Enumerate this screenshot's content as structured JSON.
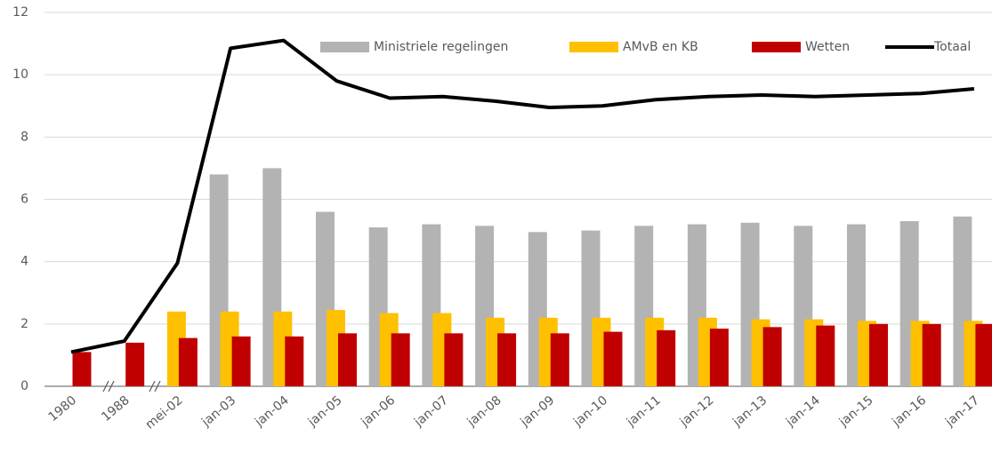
{
  "chart_data": {
    "type": "bar-line",
    "categories": [
      "1980",
      "1988",
      "mei-02",
      "jan-03",
      "jan-04",
      "jan-05",
      "jan-06",
      "jan-07",
      "jan-08",
      "jan-09",
      "jan-10",
      "jan-11",
      "jan-12",
      "jan-13",
      "jan-14",
      "jan-15",
      "jan-16",
      "jan-17"
    ],
    "series": [
      {
        "name": "Ministriele regelingen",
        "type": "bar",
        "color": "#b3b3b3",
        "values": [
          null,
          null,
          null,
          6.8,
          7.0,
          5.6,
          5.1,
          5.2,
          5.15,
          4.95,
          5.0,
          5.15,
          5.2,
          5.25,
          5.15,
          5.2,
          5.3,
          5.45
        ]
      },
      {
        "name": "AMvB en KB",
        "type": "bar",
        "color": "#ffc000",
        "values": [
          null,
          null,
          2.4,
          2.4,
          2.4,
          2.45,
          2.35,
          2.35,
          2.2,
          2.2,
          2.2,
          2.2,
          2.2,
          2.15,
          2.15,
          2.1,
          2.1,
          2.1
        ]
      },
      {
        "name": "Wetten",
        "type": "bar",
        "color": "#c00000",
        "values": [
          1.1,
          1.4,
          1.55,
          1.6,
          1.6,
          1.7,
          1.7,
          1.7,
          1.7,
          1.7,
          1.75,
          1.8,
          1.85,
          1.9,
          1.95,
          2.0,
          2.0,
          2.0
        ]
      },
      {
        "name": "Totaal",
        "type": "line",
        "color": "#000000",
        "values": [
          1.1,
          1.45,
          3.95,
          10.85,
          11.1,
          9.8,
          9.25,
          9.3,
          9.15,
          8.95,
          9.0,
          9.2,
          9.3,
          9.35,
          9.3,
          9.35,
          9.4,
          9.55
        ]
      }
    ],
    "ylim": [
      0,
      12
    ],
    "yticks": [
      0,
      2,
      4,
      6,
      8,
      10,
      12
    ],
    "grid": true
  }
}
